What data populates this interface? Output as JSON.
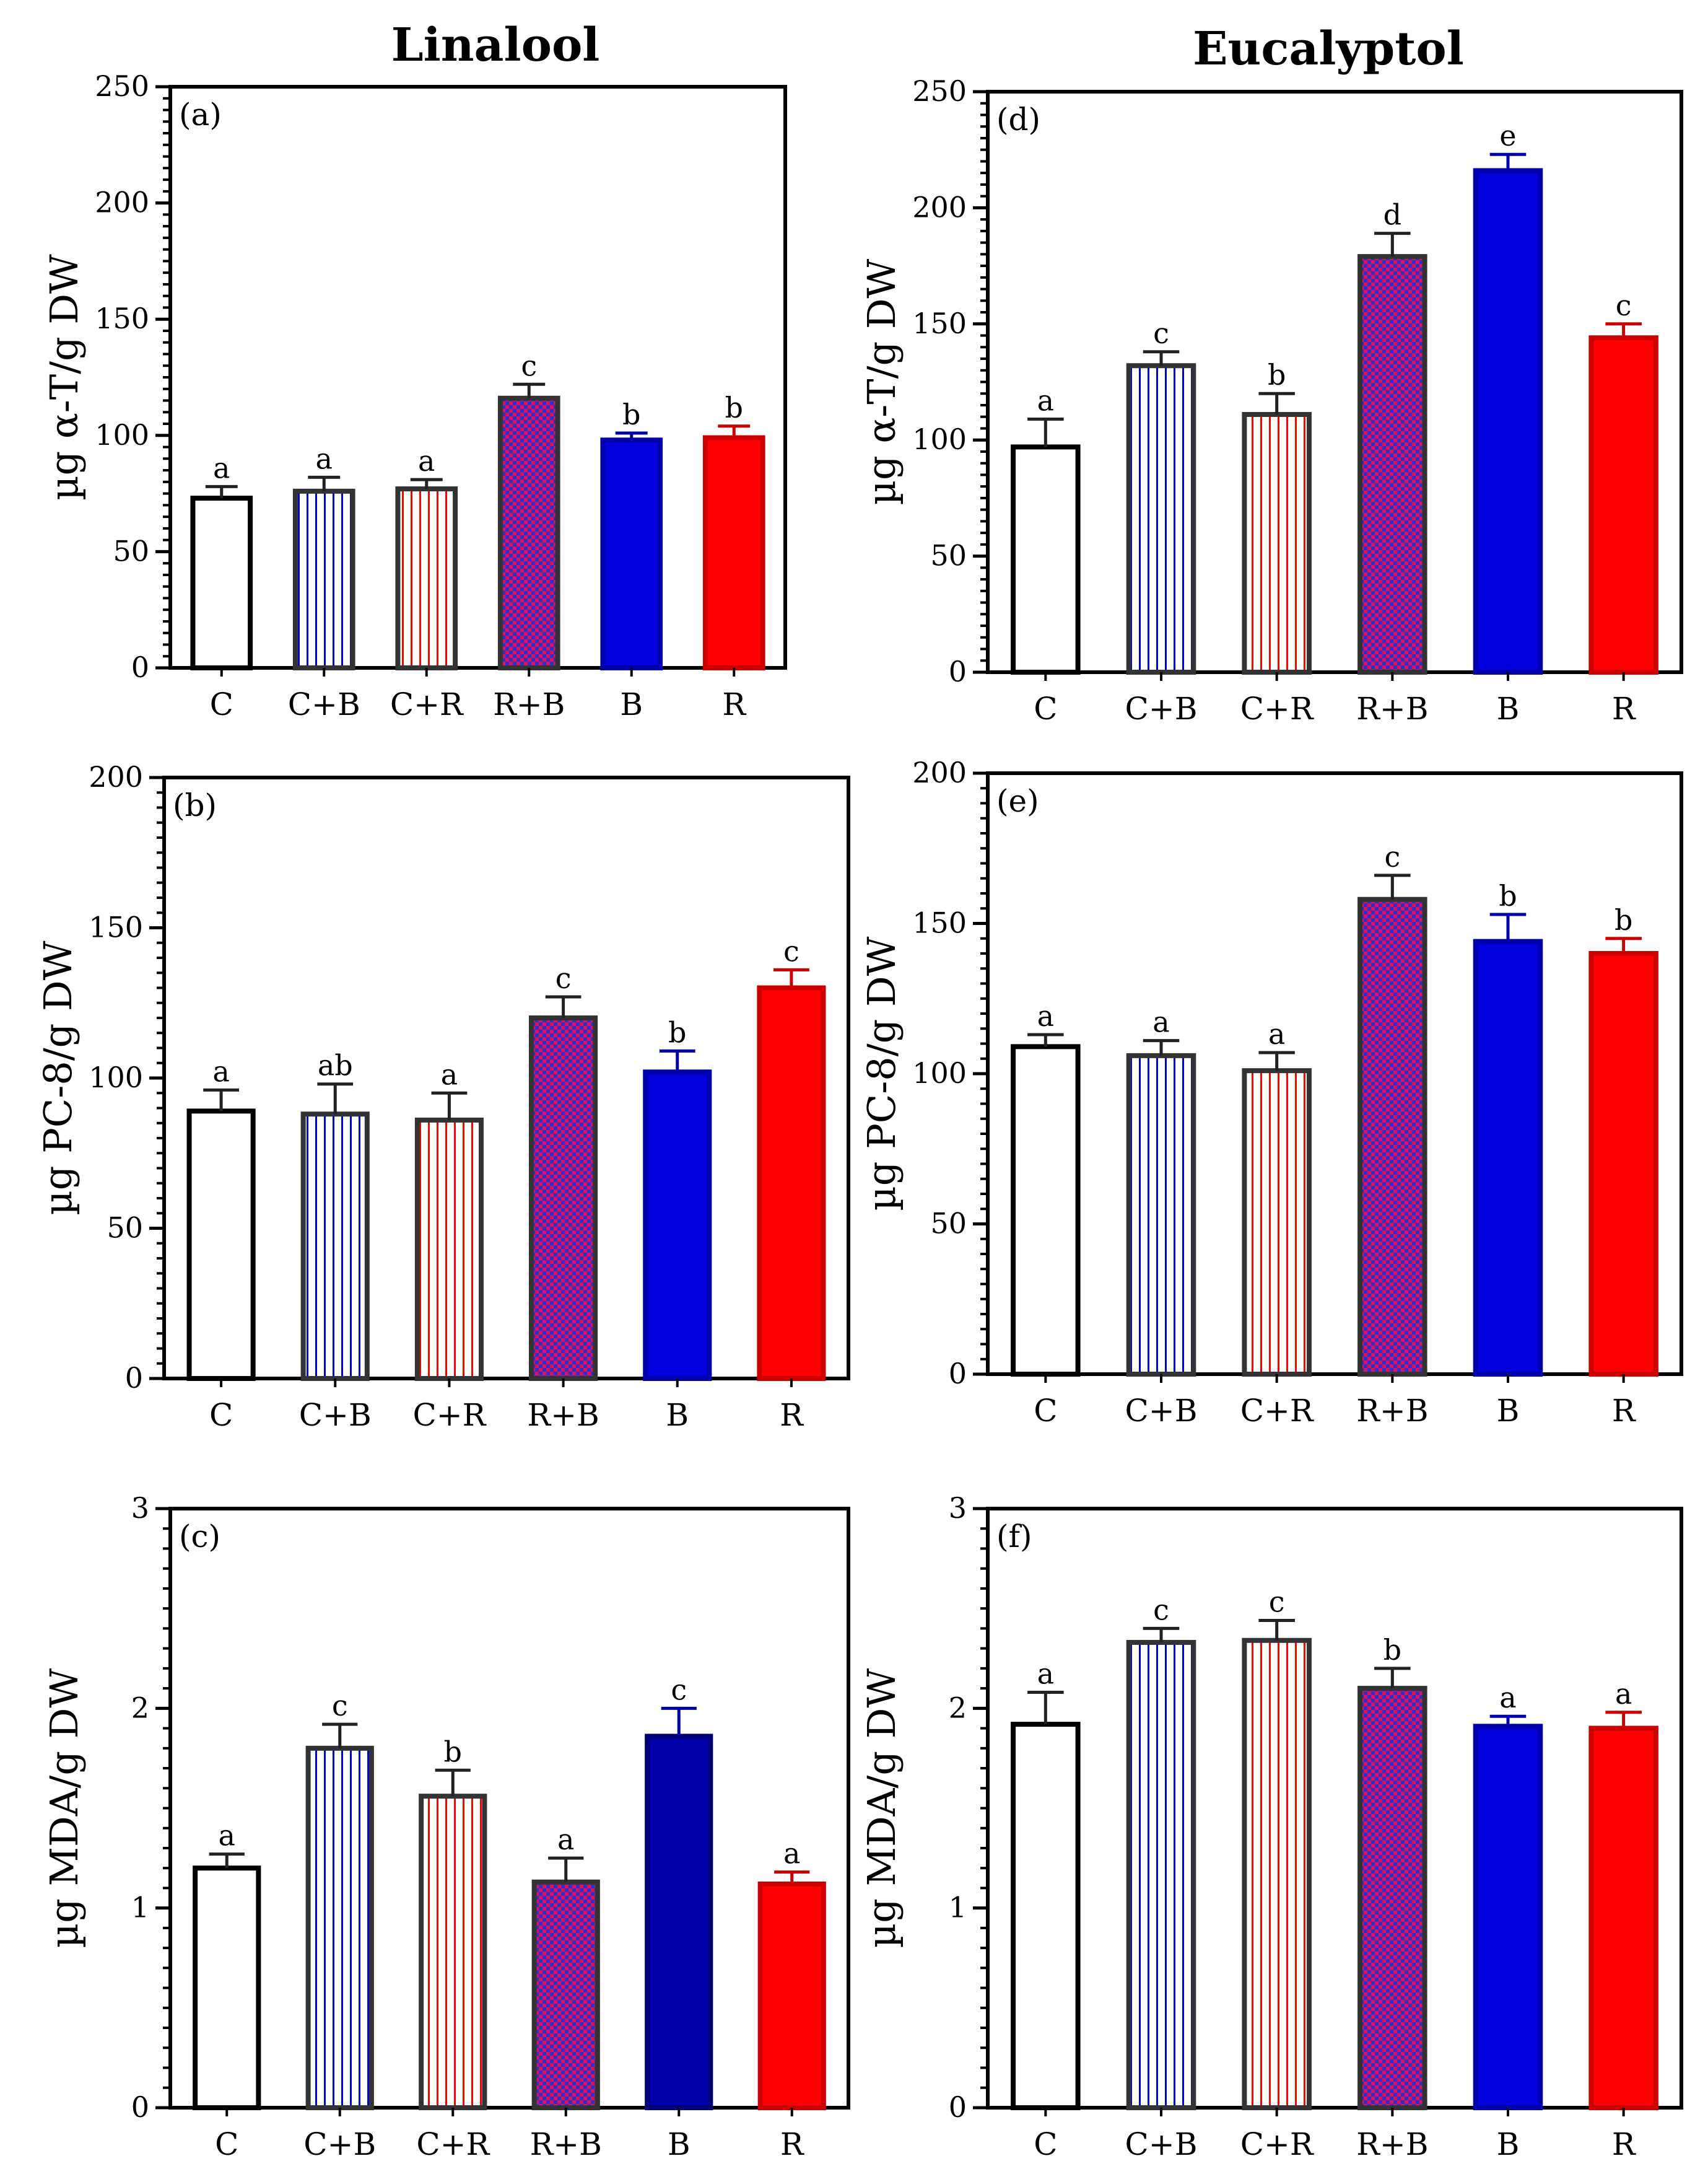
{
  "column_titles": {
    "left": "Linalool",
    "right": "Eucalyptol"
  },
  "colors": {
    "blue": "#0000dd",
    "red": "#ff0000",
    "dark_blue": "#0000aa",
    "frame": "#000000",
    "bar_edge": "#333333"
  },
  "chart_data": [
    {
      "type": "bar",
      "panel": "(a)",
      "column": "Linalool",
      "ylabel": "µg α-T/g DW",
      "xlabel": "",
      "ylim": [
        0,
        250
      ],
      "yticks": [
        0,
        50,
        100,
        150,
        200,
        250
      ],
      "categories": [
        "C",
        "C+B",
        "C+R",
        "R+B",
        "B",
        "R"
      ],
      "values": [
        73,
        76,
        77,
        116,
        98,
        99
      ],
      "errors": [
        5,
        6,
        4,
        6,
        3,
        5
      ],
      "letters": [
        "a",
        "a",
        "a",
        "c",
        "b",
        "b"
      ]
    },
    {
      "type": "bar",
      "panel": "(b)",
      "column": "Linalool",
      "ylabel": "µg PC-8/g DW",
      "xlabel": "",
      "ylim": [
        0,
        200
      ],
      "yticks": [
        0,
        50,
        100,
        150,
        200
      ],
      "categories": [
        "C",
        "C+B",
        "C+R",
        "R+B",
        "B",
        "R"
      ],
      "values": [
        89,
        88,
        86,
        120,
        102,
        130
      ],
      "errors": [
        7,
        10,
        9,
        7,
        7,
        6
      ],
      "letters": [
        "a",
        "ab",
        "a",
        "c",
        "b",
        "c"
      ]
    },
    {
      "type": "bar",
      "panel": "(c)",
      "column": "Linalool",
      "ylabel": "µg MDA/g DW",
      "xlabel": "",
      "ylim": [
        0,
        3
      ],
      "yticks": [
        0,
        1,
        2,
        3
      ],
      "categories": [
        "C",
        "C+B",
        "C+R",
        "R+B",
        "B",
        "R"
      ],
      "values": [
        1.2,
        1.8,
        1.56,
        1.13,
        1.86,
        1.12
      ],
      "errors": [
        0.07,
        0.12,
        0.13,
        0.12,
        0.14,
        0.06
      ],
      "letters": [
        "a",
        "c",
        "b",
        "a",
        "c",
        "a"
      ]
    },
    {
      "type": "bar",
      "panel": "(d)",
      "column": "Eucalyptol",
      "ylabel": "µg α-T/g DW",
      "xlabel": "",
      "ylim": [
        0,
        250
      ],
      "yticks": [
        0,
        50,
        100,
        150,
        200,
        250
      ],
      "categories": [
        "C",
        "C+B",
        "C+R",
        "R+B",
        "B",
        "R"
      ],
      "values": [
        97,
        132,
        111,
        179,
        216,
        144
      ],
      "errors": [
        12,
        6,
        9,
        10,
        7,
        6
      ],
      "letters": [
        "a",
        "c",
        "b",
        "d",
        "e",
        "c"
      ]
    },
    {
      "type": "bar",
      "panel": "(e)",
      "column": "Eucalyptol",
      "ylabel": "µg PC-8/g DW",
      "xlabel": "",
      "ylim": [
        0,
        200
      ],
      "yticks": [
        0,
        50,
        100,
        150,
        200
      ],
      "categories": [
        "C",
        "C+B",
        "C+R",
        "R+B",
        "B",
        "R"
      ],
      "values": [
        109,
        106,
        101,
        158,
        144,
        140
      ],
      "errors": [
        4,
        5,
        6,
        8,
        9,
        5
      ],
      "letters": [
        "a",
        "a",
        "a",
        "c",
        "b",
        "b"
      ]
    },
    {
      "type": "bar",
      "panel": "(f)",
      "column": "Eucalyptol",
      "ylabel": "µg MDA/g DW",
      "xlabel": "",
      "ylim": [
        0,
        3
      ],
      "yticks": [
        0,
        1,
        2,
        3
      ],
      "categories": [
        "C",
        "C+B",
        "C+R",
        "R+B",
        "B",
        "R"
      ],
      "values": [
        1.92,
        2.33,
        2.34,
        2.1,
        1.91,
        1.9
      ],
      "errors": [
        0.16,
        0.07,
        0.1,
        0.1,
        0.05,
        0.08
      ],
      "letters": [
        "a",
        "c",
        "c",
        "b",
        "a",
        "a"
      ]
    }
  ]
}
